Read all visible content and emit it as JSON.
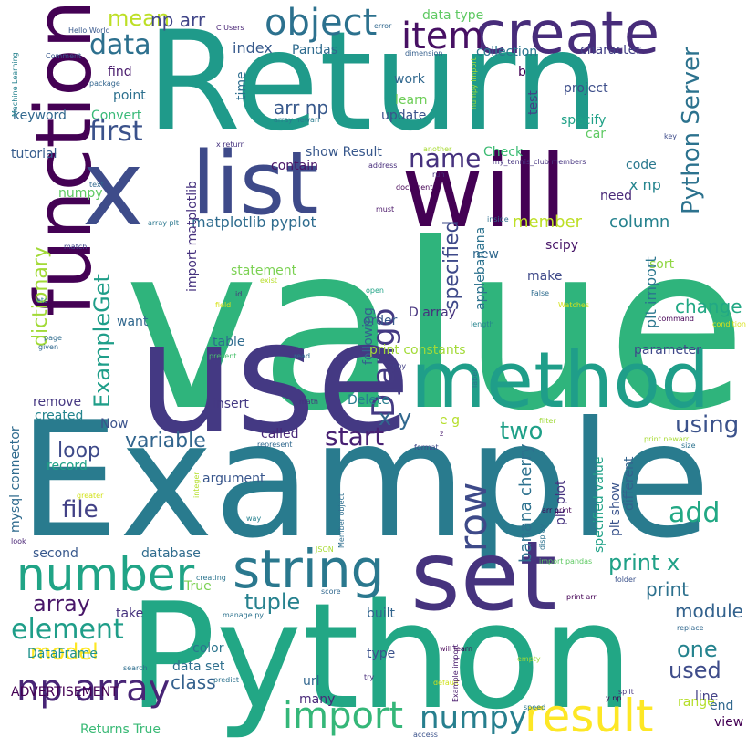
{
  "background": "#ffffff",
  "words": [
    {
      "text": "value",
      "color": "#2fb47c",
      "vertical": false
    },
    {
      "text": "Example",
      "color": "#297b8e",
      "vertical": false
    },
    {
      "text": "Python",
      "color": "#22a785",
      "vertical": false
    },
    {
      "text": "Return",
      "color": "#1f9a8a",
      "vertical": false
    },
    {
      "text": "use",
      "color": "#443983",
      "vertical": false
    },
    {
      "text": "function",
      "color": "#440154",
      "vertical": true
    },
    {
      "text": "x",
      "color": "#3e4c8a",
      "vertical": false
    },
    {
      "text": "list",
      "color": "#3e4a89",
      "vertical": false
    },
    {
      "text": "will",
      "color": "#440154",
      "vertical": false
    },
    {
      "text": "set",
      "color": "#46337e",
      "vertical": false
    },
    {
      "text": "method",
      "color": "#1f9e89",
      "vertical": false
    },
    {
      "text": "create",
      "color": "#472c7a",
      "vertical": false
    },
    {
      "text": "string",
      "color": "#2a788e",
      "vertical": false
    },
    {
      "text": "number",
      "color": "#20a486",
      "vertical": false
    },
    {
      "text": "result",
      "color": "#fde725",
      "vertical": false
    },
    {
      "text": "np array",
      "color": "#482576",
      "vertical": false
    },
    {
      "text": "import",
      "color": "#35b779",
      "vertical": false
    },
    {
      "text": "numpy",
      "color": "#277f8e",
      "vertical": false
    },
    {
      "text": "object",
      "color": "#2c718e",
      "vertical": false
    },
    {
      "text": "item",
      "color": "#471063",
      "vertical": false
    },
    {
      "text": "data",
      "color": "#2d708e",
      "vertical": false
    },
    {
      "text": "first",
      "color": "#3b528b",
      "vertical": false
    },
    {
      "text": "name",
      "color": "#46327e",
      "vertical": false
    },
    {
      "text": "Django",
      "color": "#443a83",
      "vertical": true
    },
    {
      "text": "Python Server",
      "color": "#2c728e",
      "vertical": true
    },
    {
      "text": "mean",
      "color": "#bddf26",
      "vertical": false
    },
    {
      "text": "np arr",
      "color": "#404588",
      "vertical": false
    },
    {
      "text": "x np",
      "color": "#25858e",
      "vertical": false
    },
    {
      "text": "arr np",
      "color": "#38598c",
      "vertical": false
    },
    {
      "text": "index",
      "color": "#375a8c",
      "vertical": false
    },
    {
      "text": "Pandas",
      "color": "#2f6b8e",
      "vertical": false
    },
    {
      "text": "collection",
      "color": "#2b748e",
      "vertical": false
    },
    {
      "text": "character",
      "color": "#424086",
      "vertical": false
    },
    {
      "text": "data type",
      "color": "#5ec962",
      "vertical": false
    },
    {
      "text": "find",
      "color": "#481a6c",
      "vertical": false
    },
    {
      "text": "point",
      "color": "#2d708e",
      "vertical": false
    },
    {
      "text": "Convert",
      "color": "#38b977",
      "vertical": false
    },
    {
      "text": "keyword",
      "color": "#31688e",
      "vertical": false
    },
    {
      "text": "tutorial",
      "color": "#365c8d",
      "vertical": false
    },
    {
      "text": "work",
      "color": "#31688e",
      "vertical": false
    },
    {
      "text": "learn",
      "color": "#6ece58",
      "vertical": false
    },
    {
      "text": "update",
      "color": "#3b528b",
      "vertical": false
    },
    {
      "text": "project",
      "color": "#3d4e8a",
      "vertical": false
    },
    {
      "text": "specify",
      "color": "#1fa187",
      "vertical": false
    },
    {
      "text": "car",
      "color": "#5ec962",
      "vertical": false
    },
    {
      "text": "show Result",
      "color": "#38588c",
      "vertical": false
    },
    {
      "text": "contain",
      "color": "#481467",
      "vertical": false
    },
    {
      "text": "Check",
      "color": "#3dbc74",
      "vertical": false
    },
    {
      "text": "code",
      "color": "#2a788e",
      "vertical": false
    },
    {
      "text": "numpy",
      "color": "#5ec962",
      "vertical": false
    },
    {
      "text": "need",
      "color": "#482878",
      "vertical": false
    },
    {
      "text": "member",
      "color": "#bddf26",
      "vertical": false
    },
    {
      "text": "column",
      "color": "#26828e",
      "vertical": false
    },
    {
      "text": "matplotlib pyplot",
      "color": "#2f6c8e",
      "vertical": false
    },
    {
      "text": "ExampleGet",
      "color": "#1f9e89",
      "vertical": true
    },
    {
      "text": "dictionary",
      "color": "#a2da37",
      "vertical": true
    },
    {
      "text": "specified",
      "color": "#3e4989",
      "vertical": true
    },
    {
      "text": "applebanana",
      "color": "#2c728e",
      "vertical": true
    },
    {
      "text": "new",
      "color": "#31688e",
      "vertical": false
    },
    {
      "text": "scipy",
      "color": "#481769",
      "vertical": false
    },
    {
      "text": "sort",
      "color": "#90d743",
      "vertical": false
    },
    {
      "text": "make",
      "color": "#3e4989",
      "vertical": false
    },
    {
      "text": "plt import",
      "color": "#2a768e",
      "vertical": true
    },
    {
      "text": "change",
      "color": "#22a884",
      "vertical": false
    },
    {
      "text": "statement",
      "color": "#7ad151",
      "vertical": false
    },
    {
      "text": "want",
      "color": "#31688e",
      "vertical": false
    },
    {
      "text": "following",
      "color": "#34618d",
      "vertical": true
    },
    {
      "text": "D array",
      "color": "#46337e",
      "vertical": false
    },
    {
      "text": "order",
      "color": "#38598c",
      "vertical": false
    },
    {
      "text": "table",
      "color": "#2f6b8e",
      "vertical": false
    },
    {
      "text": "print constants",
      "color": "#a2da37",
      "vertical": false
    },
    {
      "text": "parameter",
      "color": "#3f4889",
      "vertical": false
    },
    {
      "text": "remove",
      "color": "#453781",
      "vertical": false
    },
    {
      "text": "insert",
      "color": "#443983",
      "vertical": false
    },
    {
      "text": "Delete",
      "color": "#287d8e",
      "vertical": false
    },
    {
      "text": "x y",
      "color": "#31688e",
      "vertical": false
    },
    {
      "text": "created",
      "color": "#25858e",
      "vertical": false
    },
    {
      "text": "Now",
      "color": "#3b528b",
      "vertical": false
    },
    {
      "text": "variable",
      "color": "#32658e",
      "vertical": false
    },
    {
      "text": "start",
      "color": "#482173",
      "vertical": false
    },
    {
      "text": "two",
      "color": "#1fa088",
      "vertical": false
    },
    {
      "text": "using",
      "color": "#3b528b",
      "vertical": false
    },
    {
      "text": "e g",
      "color": "#b5de2b",
      "vertical": false
    },
    {
      "text": "loop",
      "color": "#3e4a89",
      "vertical": false
    },
    {
      "text": "called",
      "color": "#482878",
      "vertical": false
    },
    {
      "text": "record",
      "color": "#1fa187",
      "vertical": false
    },
    {
      "text": "argument",
      "color": "#39568c",
      "vertical": false
    },
    {
      "text": "file",
      "color": "#424186",
      "vertical": false
    },
    {
      "text": "add",
      "color": "#22a884",
      "vertical": false
    },
    {
      "text": "second",
      "color": "#38588c",
      "vertical": false
    },
    {
      "text": "database",
      "color": "#2f6c8e",
      "vertical": false
    },
    {
      "text": "print x",
      "color": "#1fa187",
      "vertical": false
    },
    {
      "text": "True",
      "color": "#7ad151",
      "vertical": false
    },
    {
      "text": "print",
      "color": "#2d718e",
      "vertical": false
    },
    {
      "text": "array",
      "color": "#481668",
      "vertical": false
    },
    {
      "text": "tuple",
      "color": "#26818e",
      "vertical": false
    },
    {
      "text": "module",
      "color": "#33628d",
      "vertical": false
    },
    {
      "text": "element",
      "color": "#1f9e89",
      "vertical": false
    },
    {
      "text": "take",
      "color": "#46327e",
      "vertical": false
    },
    {
      "text": "built",
      "color": "#32658e",
      "vertical": false
    },
    {
      "text": "one",
      "color": "#25838e",
      "vertical": false
    },
    {
      "text": "model",
      "color": "#fde725",
      "vertical": false
    },
    {
      "text": "color",
      "color": "#2b758e",
      "vertical": false
    },
    {
      "text": "DataFrame",
      "color": "#20928c",
      "vertical": false
    },
    {
      "text": "data set",
      "color": "#2e6f8e",
      "vertical": false
    },
    {
      "text": "class",
      "color": "#34618d",
      "vertical": false
    },
    {
      "text": "type",
      "color": "#3b528b",
      "vertical": false
    },
    {
      "text": "used",
      "color": "#3e4c8a",
      "vertical": false
    },
    {
      "text": "range",
      "color": "#b5de2b",
      "vertical": false
    },
    {
      "text": "ADVERTISEMENT",
      "color": "#440154",
      "vertical": false
    },
    {
      "text": "url",
      "color": "#31668e",
      "vertical": false
    },
    {
      "text": "many",
      "color": "#482878",
      "vertical": false
    },
    {
      "text": "line",
      "color": "#424086",
      "vertical": false
    },
    {
      "text": "end",
      "color": "#31688e",
      "vertical": false
    },
    {
      "text": "view",
      "color": "#440154",
      "vertical": false
    },
    {
      "text": "Returns True",
      "color": "#3aba76",
      "vertical": false
    },
    {
      "text": "row",
      "color": "#3e4a89",
      "vertical": true
    },
    {
      "text": "banana cherry",
      "color": "#2d718e",
      "vertical": true
    },
    {
      "text": "plt plot",
      "color": "#46327e",
      "vertical": true
    },
    {
      "text": "specified value",
      "color": "#1fa187",
      "vertical": true
    },
    {
      "text": "plt show",
      "color": "#3a548c",
      "vertical": true
    },
    {
      "text": "different",
      "color": "#33638d",
      "vertical": true
    },
    {
      "text": "import matplotlib",
      "color": "#46327e",
      "vertical": true
    },
    {
      "text": "mysql connector",
      "color": "#2f6b8e",
      "vertical": true
    },
    {
      "text": "time",
      "color": "#2e6e8e",
      "vertical": true
    },
    {
      "text": "test",
      "color": "#424086",
      "vertical": true
    },
    {
      "text": "Hello World",
      "color": "#38588c",
      "vertical": false
    },
    {
      "text": "C Users",
      "color": "#482475",
      "vertical": false
    },
    {
      "text": "error",
      "color": "#31688e",
      "vertical": false
    },
    {
      "text": "dimension",
      "color": "#355f8d",
      "vertical": false
    },
    {
      "text": "Comment",
      "color": "#38598c",
      "vertical": false
    },
    {
      "text": "package",
      "color": "#32658e",
      "vertical": false
    },
    {
      "text": "b",
      "color": "#440154",
      "vertical": false
    },
    {
      "text": "numpy import",
      "color": "#a5db36",
      "vertical": true
    },
    {
      "text": "array newarr",
      "color": "#287c8e",
      "vertical": false
    },
    {
      "text": "Machine Learning",
      "color": "#26828e",
      "vertical": true
    },
    {
      "text": "x return",
      "color": "#46337e",
      "vertical": false
    },
    {
      "text": "another",
      "color": "#a8db34",
      "vertical": false
    },
    {
      "text": "my_tennis_club members",
      "color": "#463480",
      "vertical": false
    },
    {
      "text": "key",
      "color": "#3e4c8a",
      "vertical": false
    },
    {
      "text": "address",
      "color": "#472d7b",
      "vertical": false
    },
    {
      "text": "run",
      "color": "#46337e",
      "vertical": false
    },
    {
      "text": "text",
      "color": "#31688e",
      "vertical": false
    },
    {
      "text": "document",
      "color": "#440154",
      "vertical": false
    },
    {
      "text": "array plt",
      "color": "#2a778e",
      "vertical": false
    },
    {
      "text": "must",
      "color": "#481467",
      "vertical": false
    },
    {
      "text": "inside",
      "color": "#2e6f8e",
      "vertical": false
    },
    {
      "text": "open",
      "color": "#20a386",
      "vertical": false
    },
    {
      "text": "match",
      "color": "#3f4788",
      "vertical": false
    },
    {
      "text": "exist",
      "color": "#b8de29",
      "vertical": false
    },
    {
      "text": "id",
      "color": "#472e7c",
      "vertical": false
    },
    {
      "text": "etc",
      "color": "#25858e",
      "vertical": false
    },
    {
      "text": "field",
      "color": "#d8e219",
      "vertical": false
    },
    {
      "text": "False",
      "color": "#2f6c8e",
      "vertical": false
    },
    {
      "text": "Watches",
      "color": "#d5e21a",
      "vertical": false
    },
    {
      "text": "length",
      "color": "#25848e",
      "vertical": false
    },
    {
      "text": "command",
      "color": "#440154",
      "vertical": false
    },
    {
      "text": "condition",
      "color": "#d8e219",
      "vertical": false
    },
    {
      "text": "page",
      "color": "#2f6c8e",
      "vertical": false
    },
    {
      "text": "given",
      "color": "#31688e",
      "vertical": false
    },
    {
      "text": "present",
      "color": "#4ac16d",
      "vertical": false
    },
    {
      "text": "read",
      "color": "#2f6c8e",
      "vertical": false
    },
    {
      "text": "copy",
      "color": "#424086",
      "vertical": false
    },
    {
      "text": "math",
      "color": "#46327e",
      "vertical": false
    },
    {
      "text": "label",
      "color": "#2c728e",
      "vertical": true
    },
    {
      "text": "filter",
      "color": "#a0da39",
      "vertical": false
    },
    {
      "text": "z",
      "color": "#481a6c",
      "vertical": false
    },
    {
      "text": "format",
      "color": "#3e4989",
      "vertical": false
    },
    {
      "text": "print newarr",
      "color": "#a8db34",
      "vertical": false
    },
    {
      "text": "size",
      "color": "#2c728e",
      "vertical": false
    },
    {
      "text": "represent",
      "color": "#31688e",
      "vertical": false
    },
    {
      "text": "greater",
      "color": "#d2e21b",
      "vertical": false
    },
    {
      "text": "arr print",
      "color": "#440154",
      "vertical": false
    },
    {
      "text": "integer",
      "color": "#b5de2b",
      "vertical": true
    },
    {
      "text": "look",
      "color": "#482475",
      "vertical": false
    },
    {
      "text": "way",
      "color": "#26818e",
      "vertical": false
    },
    {
      "text": "JSON",
      "color": "#a8db34",
      "vertical": false
    },
    {
      "text": "Member object",
      "color": "#2e6e8e",
      "vertical": true
    },
    {
      "text": "display",
      "color": "#2c728e",
      "vertical": true
    },
    {
      "text": "import pandas",
      "color": "#5ec962",
      "vertical": false
    },
    {
      "text": "creating",
      "color": "#2b748e",
      "vertical": false
    },
    {
      "text": "folder",
      "color": "#3b528b",
      "vertical": false
    },
    {
      "text": "score",
      "color": "#31688e",
      "vertical": false
    },
    {
      "text": "print arr",
      "color": "#440154",
      "vertical": false
    },
    {
      "text": "manage py",
      "color": "#2c728e",
      "vertical": false
    },
    {
      "text": "replace",
      "color": "#31688e",
      "vertical": false
    },
    {
      "text": "search",
      "color": "#2e6e8e",
      "vertical": false
    },
    {
      "text": "will learn",
      "color": "#440154",
      "vertical": false
    },
    {
      "text": "empty",
      "color": "#a2da37",
      "vertical": false
    },
    {
      "text": "try",
      "color": "#472c7a",
      "vertical": false
    },
    {
      "text": "predict",
      "color": "#2c728e",
      "vertical": false
    },
    {
      "text": "default",
      "color": "#d0e11c",
      "vertical": false
    },
    {
      "text": "y np",
      "color": "#440154",
      "vertical": false
    },
    {
      "text": "split",
      "color": "#46327e",
      "vertical": false
    },
    {
      "text": "Example import",
      "color": "#481a6c",
      "vertical": true
    },
    {
      "text": "speed",
      "color": "#2a788e",
      "vertical": false
    },
    {
      "text": "access",
      "color": "#3b528b",
      "vertical": false
    },
    {
      "text": "Example Return",
      "color": "#2f6c8e",
      "vertical": false
    },
    {
      "text": "position",
      "color": "#2c728e",
      "vertical": true
    }
  ]
}
